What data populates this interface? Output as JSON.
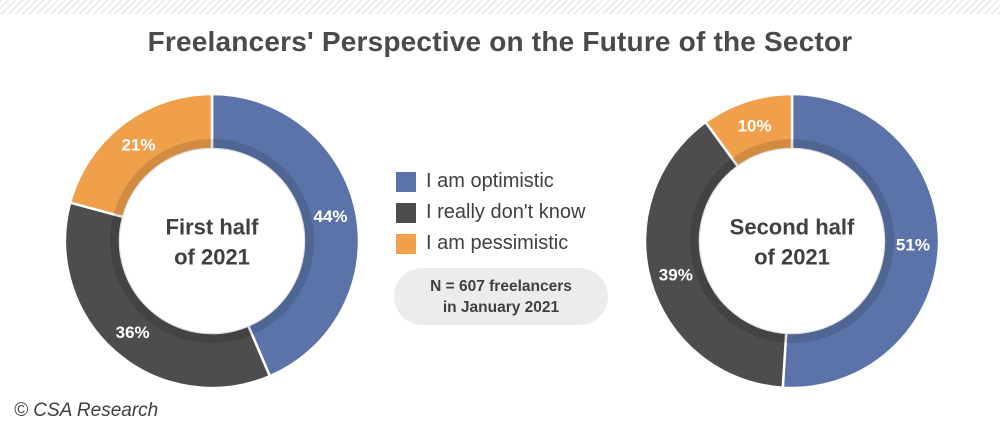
{
  "title": "Freelancers' Perspective on the Future of the Sector",
  "legend": [
    {
      "label": "I am optimistic",
      "color": "#5b73a8"
    },
    {
      "label": "I really don't know",
      "color": "#4d4d4d"
    },
    {
      "label": "I am pessimistic",
      "color": "#f0a04b"
    }
  ],
  "note": {
    "line1": "N = 607 freelancers",
    "line2": "in January 2021"
  },
  "credit": "© CSA Research",
  "chart_data": [
    {
      "type": "pie",
      "center_label": [
        "First half",
        "of 2021"
      ],
      "categories": [
        "I am optimistic",
        "I really don't know",
        "I am pessimistic"
      ],
      "values": [
        44,
        36,
        21
      ],
      "labels": [
        "44%",
        "36%",
        "21%"
      ],
      "colors": [
        "#5b73a8",
        "#4d4d4d",
        "#f0a04b"
      ]
    },
    {
      "type": "pie",
      "center_label": [
        "Second half",
        "of 2021"
      ],
      "categories": [
        "I am optimistic",
        "I really don't know",
        "I am pessimistic"
      ],
      "values": [
        51,
        39,
        10
      ],
      "labels": [
        "51%",
        "39%",
        "10%"
      ],
      "colors": [
        "#5b73a8",
        "#4d4d4d",
        "#f0a04b"
      ]
    }
  ]
}
